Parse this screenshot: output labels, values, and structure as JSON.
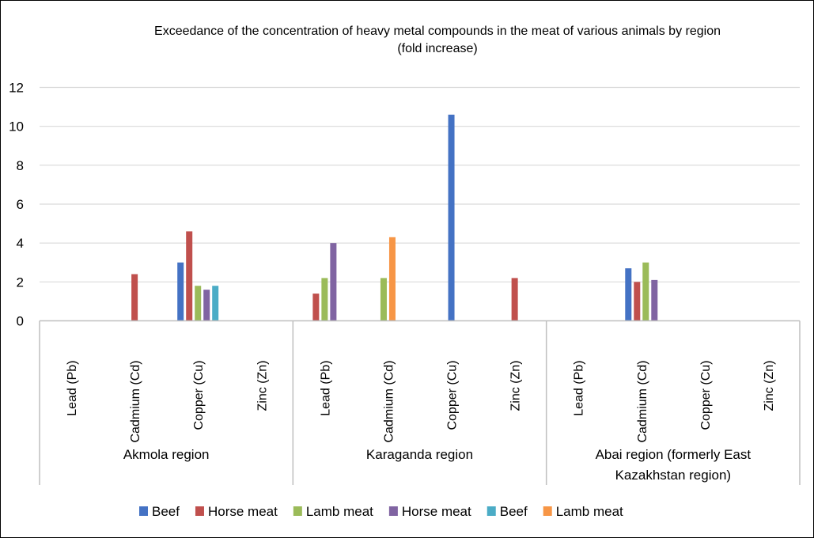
{
  "chart_data": {
    "type": "bar",
    "title": "Exceedance of the concentration of heavy metal compounds in the meat of various animals by region (fold increase)",
    "ylim": [
      0,
      12
    ],
    "yticks": [
      0,
      2,
      4,
      6,
      8,
      10,
      12
    ],
    "grid": true,
    "legend_position": "bottom",
    "groups": [
      {
        "label": "Akmola region",
        "categories": [
          "Lead (Pb)",
          "Cadmium  (Cd)",
          "Copper (Cu)",
          "Zinc (Zn)"
        ]
      },
      {
        "label": "Karaganda region",
        "categories": [
          "Lead (Pb)",
          "Cadmium  (Cd)",
          "Copper (Cu)",
          "Zinc (Zn)"
        ]
      },
      {
        "label": "Abai region (formerly East Kazakhstan region)",
        "categories": [
          "Lead (Pb)",
          "Cadmium  (Cd)",
          "Copper (Cu)",
          "Zinc (Zn)"
        ]
      }
    ],
    "series": [
      {
        "name": "Beef",
        "color": "#4472C4",
        "values": [
          null,
          null,
          3.0,
          null,
          null,
          null,
          10.6,
          null,
          null,
          2.7,
          null,
          null
        ]
      },
      {
        "name": "Horse meat",
        "color": "#C0504D",
        "values": [
          null,
          2.4,
          4.6,
          null,
          1.4,
          null,
          null,
          2.2,
          null,
          2.0,
          null,
          null
        ]
      },
      {
        "name": "Lamb meat",
        "color": "#9BBB59",
        "values": [
          null,
          null,
          1.8,
          null,
          2.2,
          2.2,
          null,
          null,
          null,
          3.0,
          null,
          null
        ]
      },
      {
        "name": "Horse meat",
        "color": "#8064A2",
        "values": [
          null,
          null,
          1.6,
          null,
          4.0,
          null,
          null,
          null,
          null,
          2.1,
          null,
          null
        ]
      },
      {
        "name": "Beef",
        "color": "#4BACC6",
        "values": [
          null,
          null,
          1.8,
          null,
          null,
          null,
          null,
          null,
          null,
          null,
          null,
          null
        ]
      },
      {
        "name": "Lamb meat",
        "color": "#F79646",
        "values": [
          null,
          null,
          null,
          null,
          null,
          4.3,
          null,
          null,
          null,
          null,
          null,
          null
        ]
      }
    ]
  }
}
